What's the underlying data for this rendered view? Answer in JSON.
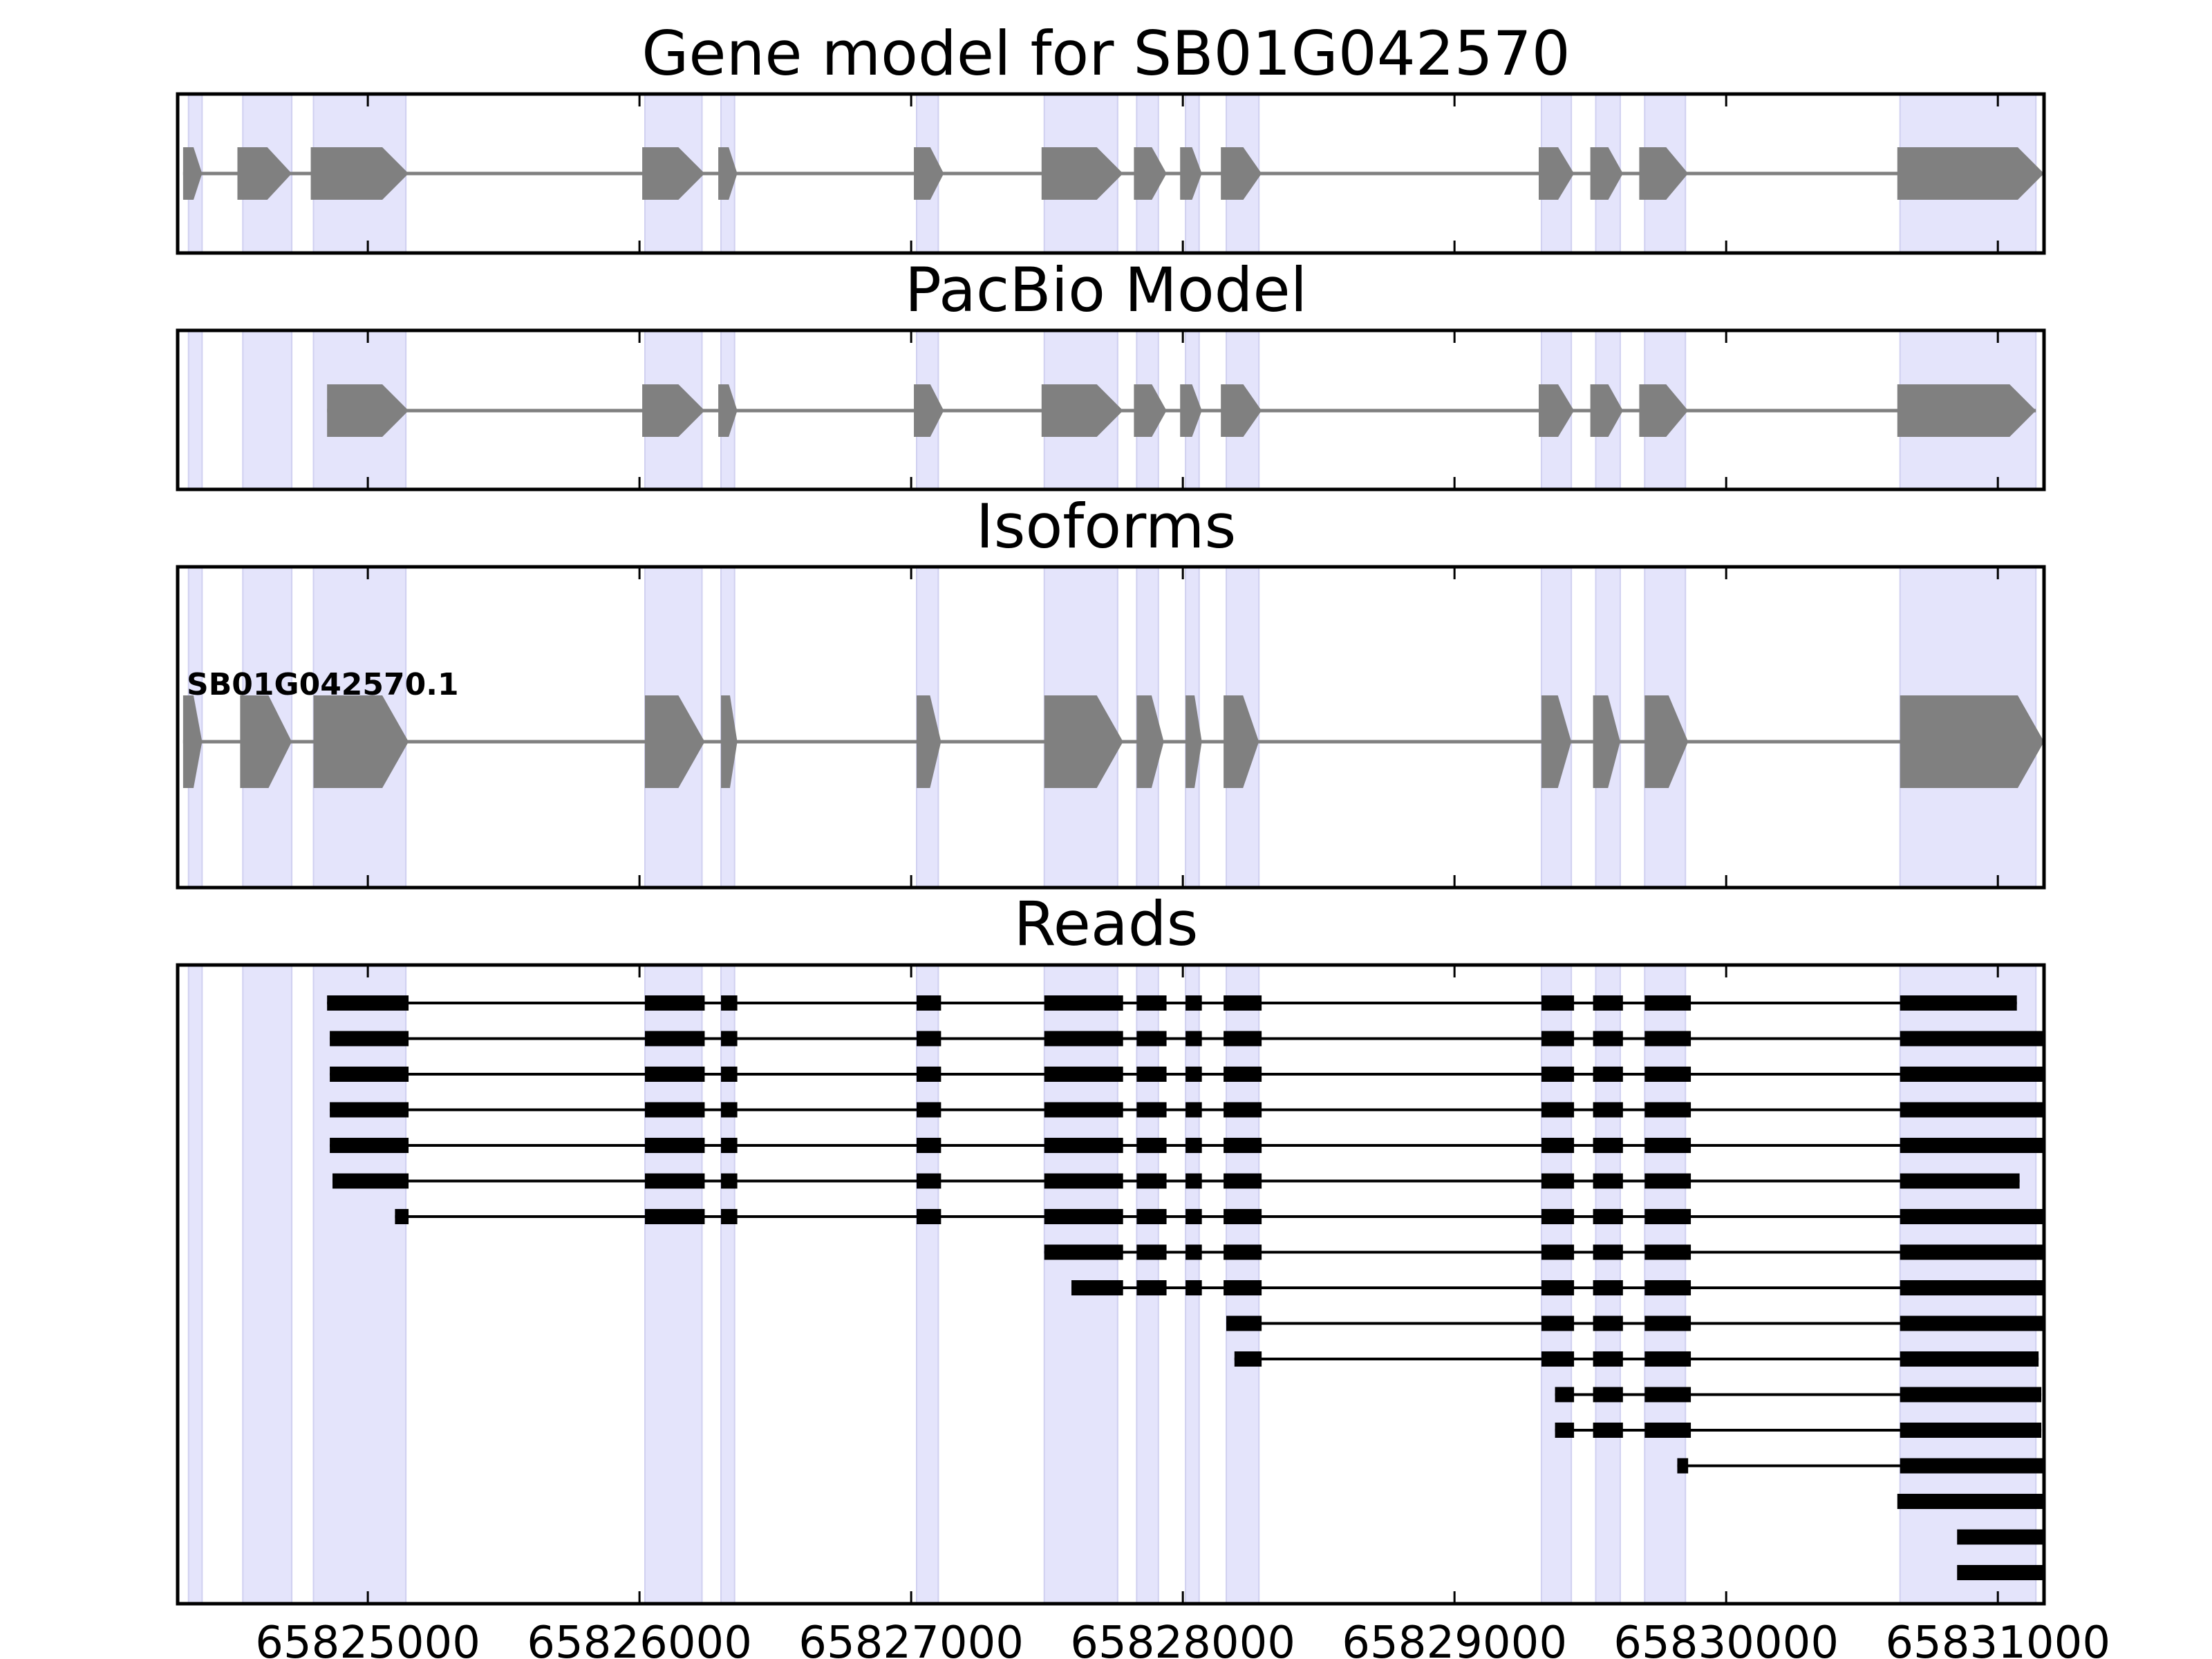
{
  "chart_data": {
    "type": "gene-structure",
    "x_range": [
      65824300,
      65831170
    ],
    "x_ticks": [
      65825000,
      65826000,
      65827000,
      65828000,
      65829000,
      65830000,
      65831000
    ],
    "x_tick_labels": [
      "65825000",
      "65826000",
      "65827000",
      "65828000",
      "65829000",
      "65830000",
      "65831000"
    ],
    "exon_highlights": [
      [
        65824340,
        65824390
      ],
      [
        65824540,
        65824720
      ],
      [
        65824800,
        65825140
      ],
      [
        65826020,
        65826230
      ],
      [
        65826300,
        65826350
      ],
      [
        65827020,
        65827100
      ],
      [
        65827490,
        65827760
      ],
      [
        65827830,
        65827910
      ],
      [
        65828010,
        65828060
      ],
      [
        65828160,
        65828280
      ],
      [
        65829320,
        65829430
      ],
      [
        65829520,
        65829610
      ],
      [
        65829700,
        65829850
      ],
      [
        65830640,
        65831140
      ]
    ],
    "panels": [
      {
        "title": "Gene model for SB01G042570",
        "kind": "model",
        "exons": [
          [
            65824320,
            65824390
          ],
          [
            65824520,
            65824720
          ],
          [
            65824790,
            65825150
          ],
          [
            65826010,
            65826240
          ],
          [
            65826290,
            65826360
          ],
          [
            65827010,
            65827120
          ],
          [
            65827480,
            65827780
          ],
          [
            65827820,
            65827940
          ],
          [
            65827990,
            65828070
          ],
          [
            65828140,
            65828290
          ],
          [
            65829310,
            65829440
          ],
          [
            65829500,
            65829620
          ],
          [
            65829680,
            65829860
          ],
          [
            65830630,
            65831170
          ]
        ]
      },
      {
        "title": "PacBio Model",
        "kind": "model",
        "exons": [
          [
            65824850,
            65825150
          ],
          [
            65826010,
            65826240
          ],
          [
            65826290,
            65826360
          ],
          [
            65827010,
            65827120
          ],
          [
            65827480,
            65827780
          ],
          [
            65827820,
            65827940
          ],
          [
            65827990,
            65828070
          ],
          [
            65828140,
            65828290
          ],
          [
            65829310,
            65829440
          ],
          [
            65829500,
            65829620
          ],
          [
            65829680,
            65829860
          ],
          [
            65830630,
            65831140
          ]
        ]
      },
      {
        "title": "Isoforms",
        "kind": "isoform",
        "isoform_label": "SB01G042570.1",
        "exons": [
          [
            65824320,
            65824390
          ],
          [
            65824530,
            65824720
          ],
          [
            65824800,
            65825150
          ],
          [
            65826020,
            65826240
          ],
          [
            65826300,
            65826360
          ],
          [
            65827020,
            65827110
          ],
          [
            65827490,
            65827780
          ],
          [
            65827830,
            65827930
          ],
          [
            65828010,
            65828070
          ],
          [
            65828150,
            65828280
          ],
          [
            65829320,
            65829430
          ],
          [
            65829510,
            65829610
          ],
          [
            65829700,
            65829860
          ],
          [
            65830640,
            65831170
          ]
        ]
      },
      {
        "title": "Reads",
        "kind": "reads",
        "reads": [
          [
            [
              65824850,
              65825150
            ],
            [
              65826020,
              65826240
            ],
            [
              65826300,
              65826360
            ],
            [
              65827020,
              65827110
            ],
            [
              65827490,
              65827780
            ],
            [
              65827830,
              65827940
            ],
            [
              65828010,
              65828070
            ],
            [
              65828150,
              65828290
            ],
            [
              65829320,
              65829440
            ],
            [
              65829510,
              65829620
            ],
            [
              65829700,
              65829870
            ],
            [
              65830640,
              65831070
            ]
          ],
          [
            [
              65824860,
              65825150
            ],
            [
              65826020,
              65826240
            ],
            [
              65826300,
              65826360
            ],
            [
              65827020,
              65827110
            ],
            [
              65827490,
              65827780
            ],
            [
              65827830,
              65827940
            ],
            [
              65828010,
              65828070
            ],
            [
              65828150,
              65828290
            ],
            [
              65829320,
              65829440
            ],
            [
              65829510,
              65829620
            ],
            [
              65829700,
              65829870
            ],
            [
              65830640,
              65831170
            ]
          ],
          [
            [
              65824860,
              65825150
            ],
            [
              65826020,
              65826240
            ],
            [
              65826300,
              65826360
            ],
            [
              65827020,
              65827110
            ],
            [
              65827490,
              65827780
            ],
            [
              65827830,
              65827940
            ],
            [
              65828010,
              65828070
            ],
            [
              65828150,
              65828290
            ],
            [
              65829320,
              65829440
            ],
            [
              65829510,
              65829620
            ],
            [
              65829700,
              65829870
            ],
            [
              65830640,
              65831170
            ]
          ],
          [
            [
              65824860,
              65825150
            ],
            [
              65826020,
              65826240
            ],
            [
              65826300,
              65826360
            ],
            [
              65827020,
              65827110
            ],
            [
              65827490,
              65827780
            ],
            [
              65827830,
              65827940
            ],
            [
              65828010,
              65828070
            ],
            [
              65828150,
              65828290
            ],
            [
              65829320,
              65829440
            ],
            [
              65829510,
              65829620
            ],
            [
              65829700,
              65829870
            ],
            [
              65830640,
              65831170
            ]
          ],
          [
            [
              65824860,
              65825150
            ],
            [
              65826020,
              65826240
            ],
            [
              65826300,
              65826360
            ],
            [
              65827020,
              65827110
            ],
            [
              65827490,
              65827780
            ],
            [
              65827830,
              65827940
            ],
            [
              65828010,
              65828070
            ],
            [
              65828150,
              65828290
            ],
            [
              65829320,
              65829440
            ],
            [
              65829510,
              65829620
            ],
            [
              65829700,
              65829870
            ],
            [
              65830640,
              65831170
            ]
          ],
          [
            [
              65824870,
              65825150
            ],
            [
              65826020,
              65826240
            ],
            [
              65826300,
              65826360
            ],
            [
              65827020,
              65827110
            ],
            [
              65827490,
              65827780
            ],
            [
              65827830,
              65827940
            ],
            [
              65828010,
              65828070
            ],
            [
              65828150,
              65828290
            ],
            [
              65829320,
              65829440
            ],
            [
              65829510,
              65829620
            ],
            [
              65829700,
              65829870
            ],
            [
              65830640,
              65831080
            ]
          ],
          [
            [
              65825100,
              65825150
            ],
            [
              65826020,
              65826240
            ],
            [
              65826300,
              65826360
            ],
            [
              65827020,
              65827110
            ],
            [
              65827490,
              65827780
            ],
            [
              65827830,
              65827940
            ],
            [
              65828010,
              65828070
            ],
            [
              65828150,
              65828290
            ],
            [
              65829320,
              65829440
            ],
            [
              65829510,
              65829620
            ],
            [
              65829700,
              65829870
            ],
            [
              65830640,
              65831170
            ]
          ],
          [
            [
              65827490,
              65827780
            ],
            [
              65827830,
              65827940
            ],
            [
              65828010,
              65828070
            ],
            [
              65828150,
              65828290
            ],
            [
              65829320,
              65829440
            ],
            [
              65829510,
              65829620
            ],
            [
              65829700,
              65829870
            ],
            [
              65830640,
              65831170
            ]
          ],
          [
            [
              65827590,
              65827780
            ],
            [
              65827830,
              65827940
            ],
            [
              65828010,
              65828070
            ],
            [
              65828150,
              65828290
            ],
            [
              65829320,
              65829440
            ],
            [
              65829510,
              65829620
            ],
            [
              65829700,
              65829870
            ],
            [
              65830640,
              65831170
            ]
          ],
          [
            [
              65828160,
              65828290
            ],
            [
              65829320,
              65829440
            ],
            [
              65829510,
              65829620
            ],
            [
              65829700,
              65829870
            ],
            [
              65830640,
              65831170
            ]
          ],
          [
            [
              65828190,
              65828290
            ],
            [
              65829320,
              65829440
            ],
            [
              65829510,
              65829620
            ],
            [
              65829700,
              65829870
            ],
            [
              65830640,
              65831150
            ]
          ],
          [
            [
              65829370,
              65829440
            ],
            [
              65829510,
              65829620
            ],
            [
              65829700,
              65829870
            ],
            [
              65830640,
              65831160
            ]
          ],
          [
            [
              65829370,
              65829440
            ],
            [
              65829510,
              65829620
            ],
            [
              65829700,
              65829870
            ],
            [
              65830640,
              65831160
            ]
          ],
          [
            [
              65829820,
              65829860
            ],
            [
              65830640,
              65831170
            ]
          ],
          [
            [
              65830630,
              65831170
            ]
          ],
          [
            [
              65830850,
              65831170
            ]
          ],
          [
            [
              65830850,
              65831170
            ]
          ]
        ]
      }
    ]
  }
}
